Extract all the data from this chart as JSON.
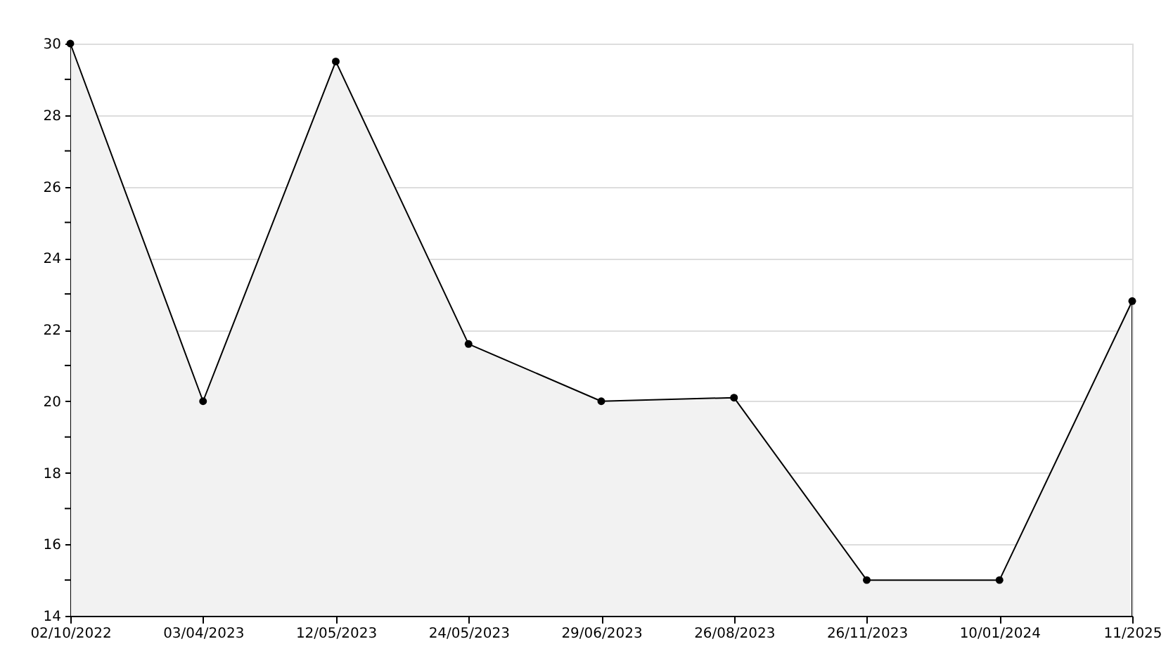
{
  "chart_data": {
    "type": "area",
    "categories": [
      "02/10/2022",
      "03/04/2023",
      "12/05/2023",
      "24/05/2023",
      "29/06/2023",
      "26/08/2023",
      "26/11/2023",
      "10/01/2024",
      "11/2025"
    ],
    "series": [
      {
        "color": "#f2f2f2",
        "values": [
          30,
          20,
          29.5,
          21.6,
          20,
          20.1,
          15,
          15,
          22.8
        ]
      }
    ],
    "ylim": [
      14,
      30
    ],
    "yticks": [
      14,
      {
        "value": 15,
        "label": null
      },
      16,
      {
        "value": 17,
        "label": null
      },
      18,
      {
        "value": 19,
        "label": null
      },
      20,
      {
        "value": 21,
        "label": null
      },
      22,
      {
        "value": 23,
        "label": null
      },
      24,
      {
        "value": 25,
        "label": null
      },
      26,
      {
        "value": 27,
        "label": null
      },
      28,
      {
        "value": 29,
        "label": null
      },
      30
    ],
    "grid": "y",
    "marker": "circle",
    "line_style": "solid"
  }
}
